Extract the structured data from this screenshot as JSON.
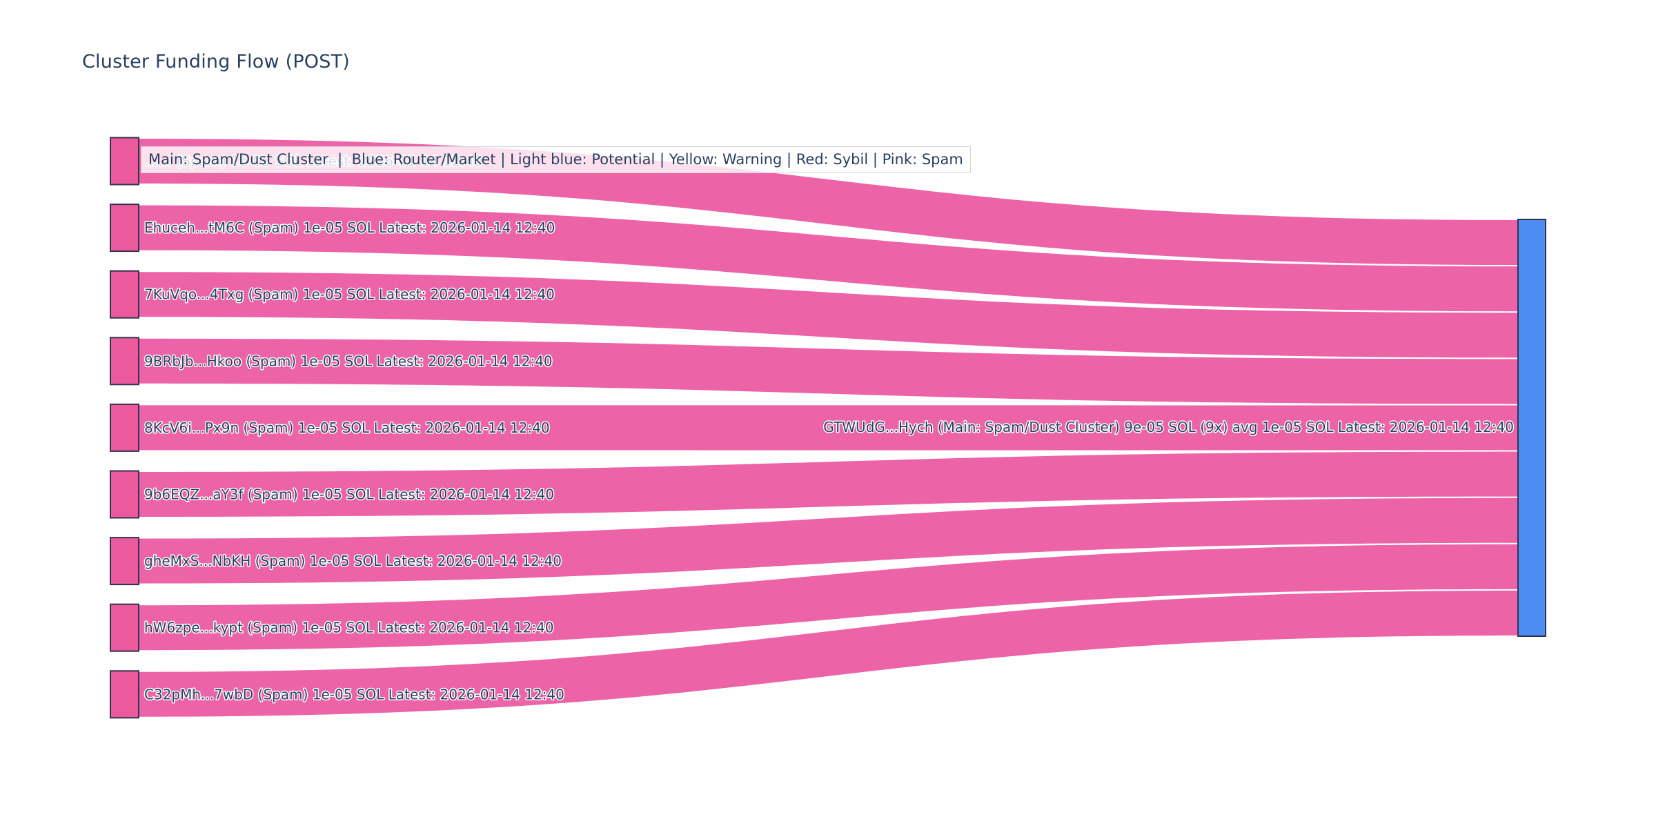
{
  "title": "Cluster Funding Flow (POST)",
  "legend": {
    "text": "Main: Spam/Dust Cluster  |  Blue: Router/Market | Light blue: Potential | Yellow: Warning | Red: Sybil | Pink: Spam"
  },
  "colors": {
    "source_node": "#EC5A9E",
    "target_node": "#4D8CF2",
    "link": "#EC5BA3",
    "link_separator": "#ffffff",
    "node_border": "#33334D",
    "label_text": "#2a3f5f",
    "title_text": "#2a3f5f"
  },
  "chart_data": {
    "type": "sankey",
    "title": "Cluster Funding Flow (POST)",
    "orientation": "horizontal",
    "unit": "SOL",
    "sources": [
      {
        "label": "…… (Spam) 1e-05 SOL Latest: 2026-01-14 12:40",
        "value": 1e-05
      },
      {
        "label": "Ehuceh...tM6C (Spam) 1e-05 SOL Latest: 2026-01-14 12:40",
        "value": 1e-05
      },
      {
        "label": "7KuVqo...4Txg (Spam) 1e-05 SOL Latest: 2026-01-14 12:40",
        "value": 1e-05
      },
      {
        "label": "9BRbJb...Hkoo (Spam) 1e-05 SOL Latest: 2026-01-14 12:40",
        "value": 1e-05
      },
      {
        "label": "8KcV6i...Px9n (Spam) 1e-05 SOL Latest: 2026-01-14 12:40",
        "value": 1e-05
      },
      {
        "label": "9b6EQZ...aY3f (Spam) 1e-05 SOL Latest: 2026-01-14 12:40",
        "value": 1e-05
      },
      {
        "label": "gheMxS...NbKH (Spam) 1e-05 SOL Latest: 2026-01-14 12:40",
        "value": 1e-05
      },
      {
        "label": "hW6zpe...kypt (Spam) 1e-05 SOL Latest: 2026-01-14 12:40",
        "value": 1e-05
      },
      {
        "label": "C32pMh...7wbD (Spam) 1e-05 SOL Latest: 2026-01-14 12:40",
        "value": 1e-05
      }
    ],
    "target": {
      "label": "GTWUdG...Hych (Main: Spam/Dust Cluster) 9e-05 SOL (9x) avg 1e-05 SOL Latest: 2026-01-14 12:40",
      "total": 9e-05,
      "tx_count": 9,
      "avg": 1e-05,
      "latest": "2026-01-14 12:40"
    },
    "links": [
      {
        "source": 0,
        "target": 0,
        "value": 1e-05
      },
      {
        "source": 1,
        "target": 0,
        "value": 1e-05
      },
      {
        "source": 2,
        "target": 0,
        "value": 1e-05
      },
      {
        "source": 3,
        "target": 0,
        "value": 1e-05
      },
      {
        "source": 4,
        "target": 0,
        "value": 1e-05
      },
      {
        "source": 5,
        "target": 0,
        "value": 1e-05
      },
      {
        "source": 6,
        "target": 0,
        "value": 1e-05
      },
      {
        "source": 7,
        "target": 0,
        "value": 1e-05
      },
      {
        "source": 8,
        "target": 0,
        "value": 1e-05
      }
    ]
  }
}
